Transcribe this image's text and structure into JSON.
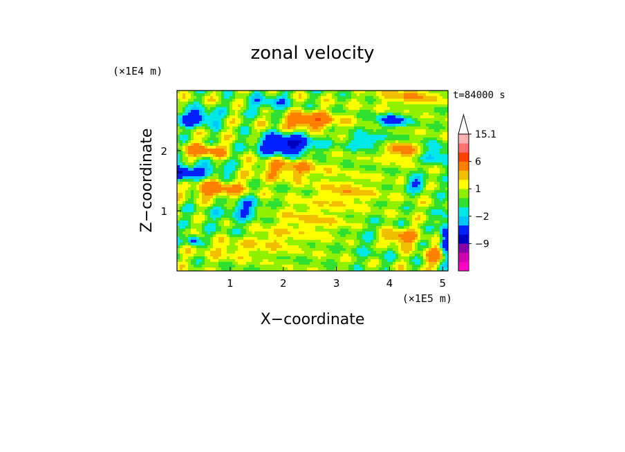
{
  "chart_data": {
    "type": "heatmap",
    "title": "zonal velocity",
    "xlabel": "X−coordinate",
    "ylabel": "Z−coordinate",
    "x_unit_label": "(×1E5 m)",
    "y_unit_label": "(×1E4 m)",
    "time_label": "t=84000 s",
    "xlim": [
      0,
      5.1
    ],
    "ylim": [
      0,
      3.0
    ],
    "x_ticks": [
      1,
      2,
      3,
      4,
      5
    ],
    "y_ticks": [
      1,
      2
    ],
    "colorbar": {
      "levels": [
        -15,
        -12,
        -9,
        -6,
        -3,
        -2,
        -1,
        0,
        1,
        2,
        3,
        6,
        9,
        12,
        15.1
      ],
      "colors": [
        "#ff00c8",
        "#d000b0",
        "#8800a8",
        "#0000c0",
        "#0020ff",
        "#00c8ff",
        "#00e8e8",
        "#30e030",
        "#90f000",
        "#ffff00",
        "#f0c000",
        "#ff8000",
        "#ff4000",
        "#ff7070",
        "#ffb0b0"
      ],
      "labels": [
        {
          "value": 15.1,
          "text": "15.1"
        },
        {
          "value": 6,
          "text": "6"
        },
        {
          "value": 1,
          "text": "1"
        },
        {
          "value": -2,
          "text": "−2"
        },
        {
          "value": -9,
          "text": "−9"
        }
      ],
      "extend_top": true
    },
    "background_value": 0.4,
    "features": [
      {
        "x": 2.05,
        "z": 2.1,
        "sx": 0.35,
        "sz": 0.12,
        "amp": -7.5
      },
      {
        "x": 0.35,
        "z": 2.55,
        "sx": 0.28,
        "sz": 0.1,
        "amp": -5
      },
      {
        "x": 0.08,
        "z": 1.62,
        "sx": 0.18,
        "sz": 0.1,
        "amp": -6
      },
      {
        "x": 0.6,
        "z": 1.68,
        "sx": 0.3,
        "sz": 0.08,
        "amp": -3
      },
      {
        "x": 4.05,
        "z": 2.5,
        "sx": 0.2,
        "sz": 0.07,
        "amp": -5
      },
      {
        "x": 4.5,
        "z": 1.45,
        "sx": 0.12,
        "sz": 0.08,
        "amp": -4
      },
      {
        "x": 1.3,
        "z": 1.05,
        "sx": 0.2,
        "sz": 0.12,
        "amp": -3
      },
      {
        "x": 0.3,
        "z": 0.52,
        "sx": 0.08,
        "sz": 0.06,
        "amp": -5
      },
      {
        "x": 5.05,
        "z": 0.55,
        "sx": 0.08,
        "sz": 0.3,
        "amp": -5
      },
      {
        "x": 1.75,
        "z": 2.8,
        "sx": 0.3,
        "sz": 0.12,
        "amp": -2.5
      },
      {
        "x": 3.6,
        "z": 2.15,
        "sx": 0.3,
        "sz": 0.1,
        "amp": -2.5
      },
      {
        "x": 4.9,
        "z": 1.95,
        "sx": 0.2,
        "sz": 0.12,
        "amp": -3
      },
      {
        "x": 2.5,
        "z": 2.5,
        "sx": 0.35,
        "sz": 0.1,
        "amp": 5
      },
      {
        "x": 0.5,
        "z": 2.0,
        "sx": 0.25,
        "sz": 0.08,
        "amp": 4
      },
      {
        "x": 0.75,
        "z": 1.35,
        "sx": 0.35,
        "sz": 0.1,
        "amp": 4
      },
      {
        "x": 2.1,
        "z": 1.7,
        "sx": 0.45,
        "sz": 0.12,
        "amp": 3
      },
      {
        "x": 4.15,
        "z": 0.55,
        "sx": 0.25,
        "sz": 0.1,
        "amp": 4
      },
      {
        "x": 4.2,
        "z": 2.0,
        "sx": 0.25,
        "sz": 0.1,
        "amp": 3.5
      },
      {
        "x": 3.2,
        "z": 1.3,
        "sx": 0.4,
        "sz": 0.15,
        "amp": 2
      },
      {
        "x": 2.5,
        "z": 0.85,
        "sx": 0.5,
        "sz": 0.2,
        "amp": 1.6
      },
      {
        "x": 1.8,
        "z": 0.5,
        "sx": 0.3,
        "sz": 0.12,
        "amp": 1.5
      },
      {
        "x": 4.9,
        "z": 0.25,
        "sx": 0.15,
        "sz": 0.1,
        "amp": 4
      },
      {
        "x": 1.0,
        "z": 0.35,
        "sx": 0.4,
        "sz": 0.1,
        "amp": 1.5
      },
      {
        "x": 4.4,
        "z": 2.9,
        "sx": 0.4,
        "sz": 0.1,
        "amp": 2.5
      },
      {
        "x": 3.7,
        "z": 0.5,
        "sx": 0.3,
        "sz": 0.25,
        "amp": -1.3
      },
      {
        "x": 0.9,
        "z": 0.9,
        "sx": 0.4,
        "sz": 0.2,
        "amp": -1.0
      }
    ]
  }
}
